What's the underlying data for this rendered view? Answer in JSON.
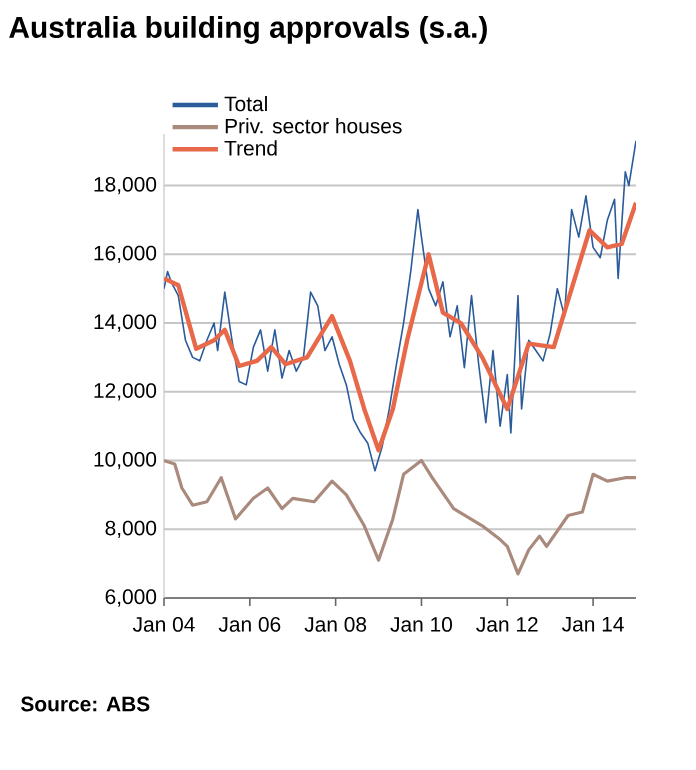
{
  "chart_data": {
    "type": "line",
    "title": "Australia building approvals (s.a.)",
    "annotations": [
      "Source: ABS"
    ],
    "xlim": [
      "2004-01",
      "2015-01"
    ],
    "xticks": [
      {
        "value": "2004-01",
        "label": "Jan 04"
      },
      {
        "value": "2006-01",
        "label": "Jan 06"
      },
      {
        "value": "2008-01",
        "label": "Jan 08"
      },
      {
        "value": "2010-01",
        "label": "Jan 10"
      },
      {
        "value": "2012-01",
        "label": "Jan 12"
      },
      {
        "value": "2014-01",
        "label": "Jan 14"
      }
    ],
    "ylim": [
      6000,
      19500
    ],
    "yticks": [
      {
        "value": 6000,
        "label": "6,000"
      },
      {
        "value": 8000,
        "label": "8,000"
      },
      {
        "value": 10000,
        "label": "10,000"
      },
      {
        "value": 12000,
        "label": "12,000"
      },
      {
        "value": 14000,
        "label": "14,000"
      },
      {
        "value": 16000,
        "label": "16,000"
      },
      {
        "value": 18000,
        "label": "18,000"
      }
    ],
    "grid": "y",
    "legend": "top left",
    "series": [
      {
        "name": "Total",
        "color": "#2a5b9a",
        "x": [
          "2004-01",
          "2004-02",
          "2004-03",
          "2004-05",
          "2004-07",
          "2004-09",
          "2004-11",
          "2005-01",
          "2005-03",
          "2005-04",
          "2005-06",
          "2005-08",
          "2005-10",
          "2005-12",
          "2006-02",
          "2006-04",
          "2006-06",
          "2006-08",
          "2006-10",
          "2006-12",
          "2007-02",
          "2007-04",
          "2007-06",
          "2007-08",
          "2007-10",
          "2007-12",
          "2008-02",
          "2008-04",
          "2008-06",
          "2008-08",
          "2008-10",
          "2008-12",
          "2009-02",
          "2009-04",
          "2009-06",
          "2009-08",
          "2009-10",
          "2009-12",
          "2010-01",
          "2010-03",
          "2010-05",
          "2010-07",
          "2010-09",
          "2010-11",
          "2011-01",
          "2011-03",
          "2011-05",
          "2011-07",
          "2011-09",
          "2011-11",
          "2012-01",
          "2012-02",
          "2012-04",
          "2012-05",
          "2012-07",
          "2012-09",
          "2012-11",
          "2013-01",
          "2013-03",
          "2013-05",
          "2013-07",
          "2013-09",
          "2013-11",
          "2014-01",
          "2014-03",
          "2014-05",
          "2014-07",
          "2014-08",
          "2014-10",
          "2014-11",
          "2015-01"
        ],
        "values": [
          15000,
          15500,
          15200,
          14800,
          13500,
          13000,
          12900,
          13500,
          14000,
          13200,
          14900,
          13500,
          12300,
          12200,
          13300,
          13800,
          12600,
          13800,
          12400,
          13200,
          12600,
          13000,
          14900,
          14500,
          13200,
          13600,
          12800,
          12200,
          11200,
          10800,
          10500,
          9700,
          10400,
          11500,
          12800,
          14000,
          15500,
          17300,
          16500,
          15000,
          14500,
          15200,
          13600,
          14500,
          12700,
          14800,
          12800,
          11100,
          13200,
          11000,
          12500,
          10800,
          14800,
          11500,
          13500,
          13200,
          12900,
          13700,
          15000,
          14200,
          17300,
          16500,
          17700,
          16200,
          15900,
          17000,
          17600,
          15300,
          18400,
          18000,
          19300
        ]
      },
      {
        "name": "Priv. sector houses",
        "color": "#a98a7c",
        "x": [
          "2004-01",
          "2004-04",
          "2004-06",
          "2004-09",
          "2005-01",
          "2005-05",
          "2005-09",
          "2006-02",
          "2006-06",
          "2006-10",
          "2007-01",
          "2007-07",
          "2007-12",
          "2008-04",
          "2008-09",
          "2009-01",
          "2009-05",
          "2009-08",
          "2010-01",
          "2010-04",
          "2010-10",
          "2011-06",
          "2011-11",
          "2012-01",
          "2012-04",
          "2012-07",
          "2012-10",
          "2012-12",
          "2013-06",
          "2013-10",
          "2014-01",
          "2014-05",
          "2014-10",
          "2015-01"
        ],
        "values": [
          10000,
          9900,
          9200,
          8700,
          8800,
          9500,
          8300,
          8900,
          9200,
          8600,
          8900,
          8800,
          9400,
          9000,
          8100,
          7100,
          8300,
          9600,
          10000,
          9500,
          8600,
          8100,
          7700,
          7500,
          6700,
          7400,
          7800,
          7500,
          8400,
          8500,
          9600,
          9400,
          9500,
          9500
        ]
      },
      {
        "name": "Trend",
        "color": "#e8694a",
        "x": [
          "2004-01",
          "2004-05",
          "2004-10",
          "2005-03",
          "2005-06",
          "2005-10",
          "2006-03",
          "2006-07",
          "2006-11",
          "2007-05",
          "2007-12",
          "2008-05",
          "2008-09",
          "2009-01",
          "2009-05",
          "2009-09",
          "2010-03",
          "2010-07",
          "2010-12",
          "2011-06",
          "2012-01",
          "2012-07",
          "2013-02",
          "2013-12",
          "2014-05",
          "2014-09",
          "2015-01"
        ],
        "values": [
          15300,
          15100,
          13250,
          13500,
          13800,
          12750,
          12900,
          13300,
          12800,
          13000,
          14200,
          12900,
          11500,
          10300,
          11500,
          13500,
          16000,
          14300,
          14000,
          13000,
          11500,
          13400,
          13300,
          16700,
          16200,
          16300,
          17500
        ]
      }
    ]
  }
}
